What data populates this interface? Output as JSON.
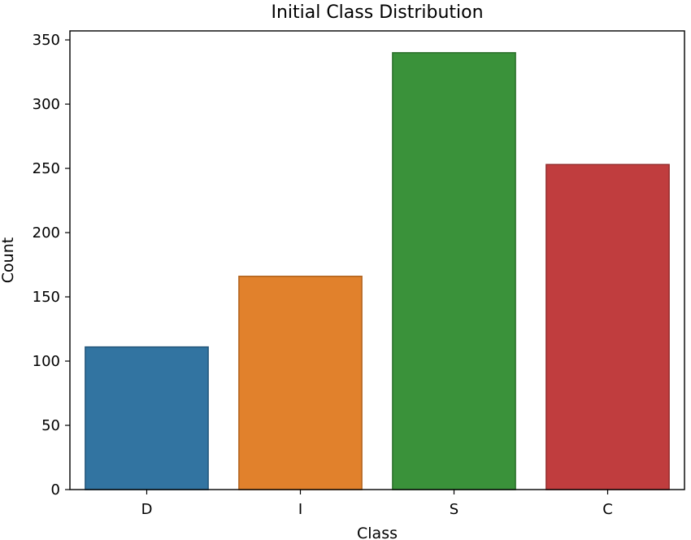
{
  "chart_data": {
    "type": "bar",
    "title": "Initial Class Distribution",
    "xlabel": "Class",
    "ylabel": "Count",
    "categories": [
      "D",
      "I",
      "S",
      "C"
    ],
    "values": [
      111,
      166,
      340,
      253
    ],
    "ylim": [
      0,
      357
    ],
    "yticks": [
      0,
      50,
      100,
      150,
      200,
      250,
      300,
      350
    ],
    "colors": [
      "#3274a1",
      "#e1812c",
      "#3a923a",
      "#c03d3e"
    ],
    "edge_colors": [
      "#23567a",
      "#b0621d",
      "#2a6f2a",
      "#952c2d"
    ],
    "grid": false,
    "legend": "none"
  }
}
